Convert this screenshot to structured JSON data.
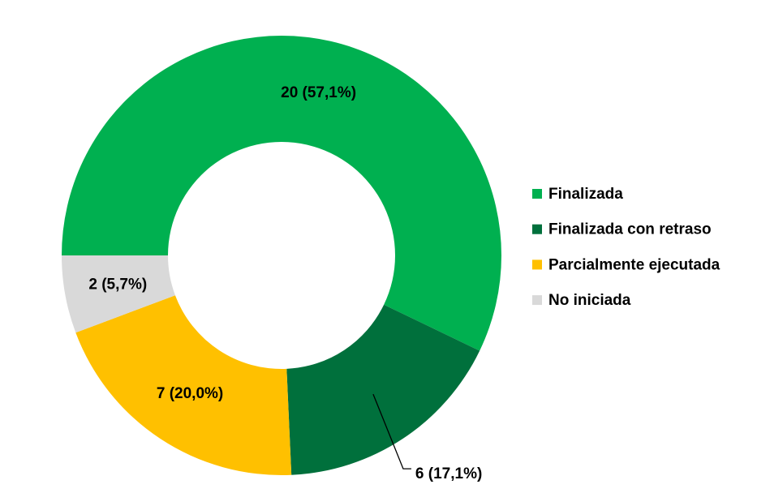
{
  "chart_data": {
    "type": "donut",
    "categories": [
      "Finalizada",
      "Finalizada con retraso",
      "Parcialmente ejecutada",
      "No iniciada"
    ],
    "values": [
      20,
      6,
      7,
      2
    ],
    "value_labels": [
      "20 (57,1%)",
      "6 (17,1%)",
      "7 (20,0%)",
      "2 (5,7%)"
    ],
    "colors": [
      "#00b050",
      "#00703c",
      "#ffc000",
      "#d9d9d9"
    ],
    "legend": "right"
  }
}
